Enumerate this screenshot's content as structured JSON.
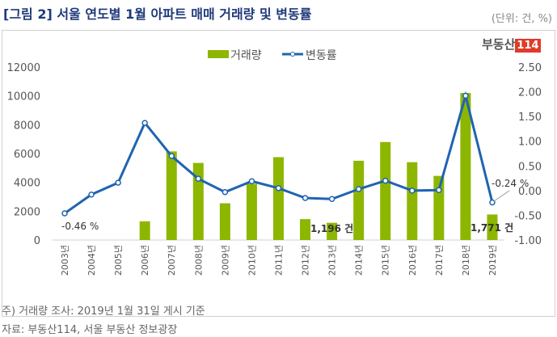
{
  "title": "[그림 2] 서울 연도별 1월 아파트 매매 거래량 및 변동률",
  "unit": "(단위: 건, %)",
  "logo": {
    "text": "부동산",
    "number": "114"
  },
  "note": "주) 거래량 조사: 2019년 1월 31일 게시 기준",
  "source": "자료: 부동산114, 서울 부동산 정보광장",
  "chart_data": {
    "type": "bar+line",
    "categories": [
      "2003년",
      "2004년",
      "2005년",
      "2006년",
      "2007년",
      "2008년",
      "2009년",
      "2010년",
      "2011년",
      "2012년",
      "2013년",
      "2014년",
      "2015년",
      "2016년",
      "2017년",
      "2018년",
      "2019년"
    ],
    "series": [
      {
        "name": "거래량",
        "type": "bar",
        "axis": "left",
        "color": "#8db600",
        "values": [
          null,
          null,
          null,
          1300,
          6150,
          5350,
          2550,
          3900,
          5750,
          1450,
          1196,
          5500,
          6800,
          5400,
          4450,
          10200,
          1771
        ]
      },
      {
        "name": "변동률",
        "type": "line",
        "axis": "right",
        "color": "#1f64b0",
        "values": [
          -0.46,
          -0.08,
          0.16,
          1.37,
          0.7,
          0.24,
          -0.03,
          0.19,
          0.05,
          -0.15,
          -0.17,
          0.03,
          0.2,
          0.0,
          0.01,
          1.92,
          -0.24
        ]
      }
    ],
    "left_axis": {
      "range": [
        0,
        12000
      ],
      "ticks": [
        "0",
        "2000",
        "4000",
        "6000",
        "8000",
        "10000",
        "12000"
      ]
    },
    "right_axis": {
      "range": [
        -1.0,
        2.5
      ],
      "ticks": [
        "-1.00",
        "-0.50",
        "0.00",
        "0.50",
        "1.00",
        "1.50",
        "2.00",
        "2.50"
      ]
    },
    "annotations": [
      "-0.46 %",
      "1,196 건",
      "1,771 건",
      "-0.24 %"
    ],
    "legend": "top-center",
    "grid": false
  }
}
